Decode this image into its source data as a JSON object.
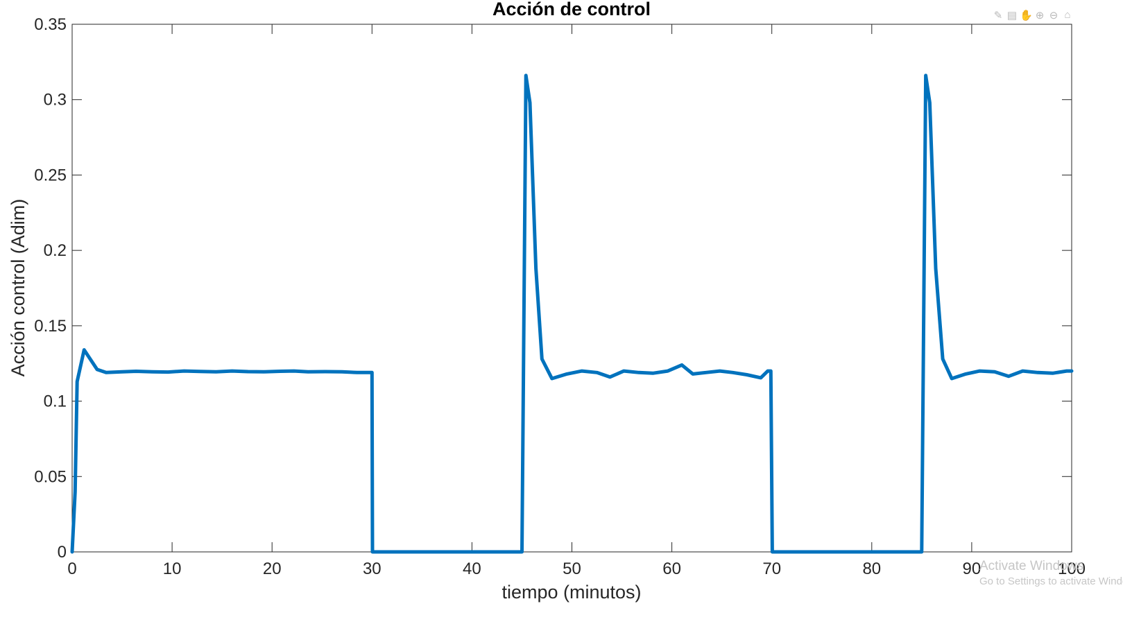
{
  "toolbar": {
    "icons": [
      "brush-icon",
      "data-tips-icon",
      "pan-icon",
      "zoom-in-icon",
      "zoom-out-icon",
      "home-icon"
    ],
    "glyphs": [
      "✎",
      "▤",
      "✋",
      "⊕",
      "⊖",
      "⌂"
    ]
  },
  "watermark": {
    "line1": "Activate Windows",
    "line2": "Go to Settings to activate Windows."
  },
  "chart_data": {
    "type": "line",
    "title": "Acción de control",
    "xlabel": "tiempo (minutos)",
    "ylabel": "Acción control (Adim)",
    "xlim": [
      0,
      100
    ],
    "ylim": [
      0,
      0.35
    ],
    "xticks": [
      0,
      10,
      20,
      30,
      40,
      50,
      60,
      70,
      80,
      90,
      100
    ],
    "xtick_labels": [
      "0",
      "10",
      "20",
      "30",
      "40",
      "50",
      "60",
      "70",
      "80",
      "90",
      "100"
    ],
    "yticks": [
      0,
      0.05,
      0.1,
      0.15,
      0.2,
      0.25,
      0.3,
      0.35
    ],
    "ytick_labels": [
      "0",
      "0.05",
      "0.1",
      "0.15",
      "0.2",
      "0.25",
      "0.3",
      "0.35"
    ],
    "grid": false,
    "line_color": "#0072BD",
    "series": [
      {
        "x": [
          0,
          0.3,
          0.5,
          1.2,
          2.5,
          3.4,
          5,
          6.4,
          8,
          9.6,
          11.2,
          12.8,
          14.4,
          16,
          17.6,
          19.2,
          20.8,
          22.2,
          23.6,
          25.3,
          27,
          28.5,
          30,
          30.05,
          35,
          40,
          45,
          45.4,
          45.8,
          46.4,
          47,
          48,
          49.5,
          51,
          52.5,
          53.8,
          55.2,
          56.7,
          58.1,
          59.6,
          61,
          62.1,
          63.4,
          64.8,
          66.1,
          67.5,
          68.9,
          69.6,
          69.9,
          70.05,
          75,
          80,
          85,
          85.4,
          85.8,
          86.4,
          87.1,
          88,
          89.4,
          90.8,
          92.3,
          93.7,
          95.1,
          96.6,
          98.1,
          99.5,
          100
        ],
        "y": [
          0,
          0.04,
          0.113,
          0.134,
          0.121,
          0.119,
          0.1195,
          0.1198,
          0.1195,
          0.1193,
          0.12,
          0.1197,
          0.1195,
          0.12,
          0.1196,
          0.1195,
          0.1198,
          0.12,
          0.1195,
          0.1196,
          0.1195,
          0.119,
          0.119,
          0,
          0,
          0,
          0,
          0.316,
          0.298,
          0.188,
          0.128,
          0.115,
          0.118,
          0.12,
          0.119,
          0.116,
          0.12,
          0.119,
          0.1185,
          0.12,
          0.124,
          0.118,
          0.119,
          0.12,
          0.119,
          0.1175,
          0.1155,
          0.12,
          0.12,
          0,
          0,
          0,
          0,
          0.316,
          0.298,
          0.188,
          0.128,
          0.115,
          0.118,
          0.12,
          0.1195,
          0.1165,
          0.12,
          0.119,
          0.1185,
          0.12,
          0.12
        ]
      }
    ]
  }
}
